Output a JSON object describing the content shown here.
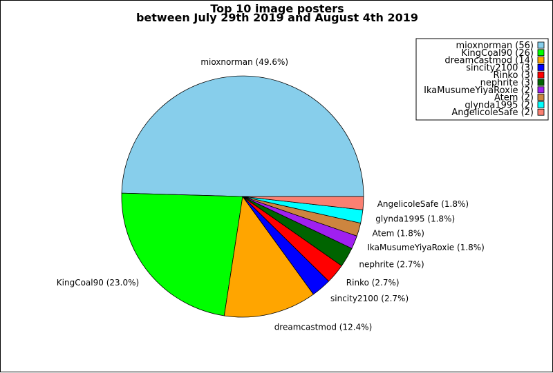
{
  "chart_data": {
    "type": "pie",
    "title": [
      "Top 10 image posters",
      "between July 29th 2019 and August 4th 2019"
    ],
    "legend_position": "top-right",
    "slices": [
      {
        "name": "mioxnorman",
        "count": 56,
        "percent": "49.6%",
        "color": "#87ceeb"
      },
      {
        "name": "KingCoal90",
        "count": 26,
        "percent": "23.0%",
        "color": "#00ff00"
      },
      {
        "name": "dreamcastmod",
        "count": 14,
        "percent": "12.4%",
        "color": "#ffa500"
      },
      {
        "name": "sincity2100",
        "count": 3,
        "percent": "2.7%",
        "color": "#0000ff"
      },
      {
        "name": "Rinko",
        "count": 3,
        "percent": "2.7%",
        "color": "#ff0000"
      },
      {
        "name": "nephrite",
        "count": 3,
        "percent": "2.7%",
        "color": "#006400"
      },
      {
        "name": "IkaMusumeYiyaRoxie",
        "count": 2,
        "percent": "1.8%",
        "color": "#a020f0"
      },
      {
        "name": "Atem",
        "count": 2,
        "percent": "1.8%",
        "color": "#cd853f"
      },
      {
        "name": "glynda1995",
        "count": 2,
        "percent": "1.8%",
        "color": "#00ffff"
      },
      {
        "name": "AngelicoleSafe",
        "count": 2,
        "percent": "1.8%",
        "color": "#fa8072"
      }
    ]
  }
}
